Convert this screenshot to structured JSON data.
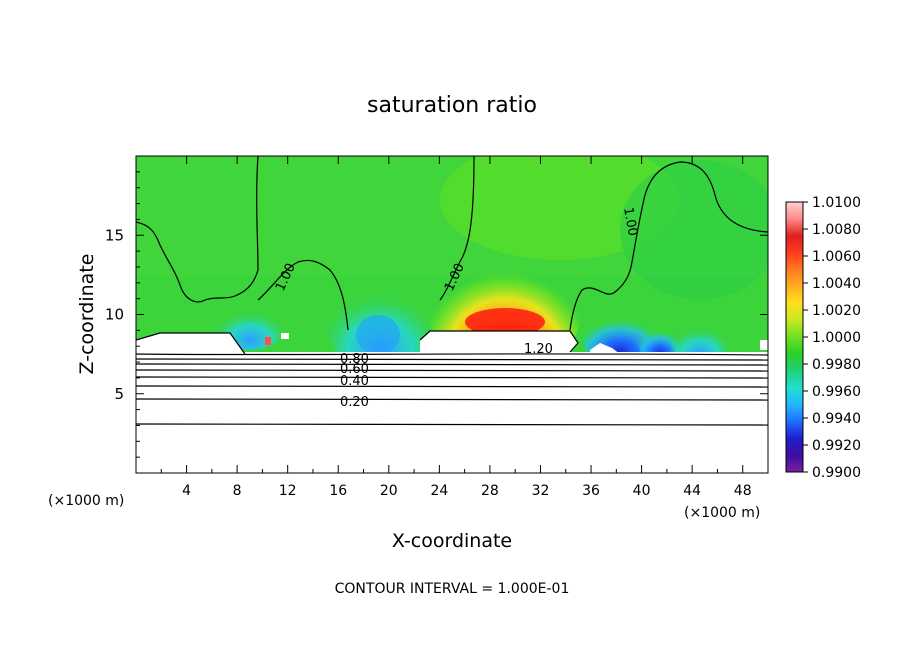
{
  "chart_data": {
    "type": "heatmap",
    "title": "saturation ratio",
    "xlabel": "X-coordinate",
    "ylabel": "Z-coordinate",
    "x_unit_left": "(×1000 m)",
    "x_unit_right": "(×1000 m)",
    "footer": "CONTOUR INTERVAL = 1.000E-01",
    "xlim": [
      0,
      50
    ],
    "ylim": [
      0,
      20
    ],
    "x_ticks": [
      4,
      8,
      12,
      16,
      20,
      24,
      28,
      32,
      36,
      40,
      44,
      48
    ],
    "y_ticks": [
      5,
      10,
      15
    ],
    "colorbar": {
      "range": [
        0.99,
        1.01
      ],
      "labels": [
        "1.0100",
        "1.0080",
        "1.0060",
        "1.0040",
        "1.0020",
        "1.0000",
        "0.9980",
        "0.9960",
        "0.9940",
        "0.9920",
        "0.9900"
      ],
      "colors": [
        "#7a1fa2",
        "#3b0f9e",
        "#1f1fd0",
        "#1f6fff",
        "#22b8ff",
        "#1fe0c8",
        "#1fd07a",
        "#2ad02a",
        "#6fe01f",
        "#c8e81f",
        "#ffe01f",
        "#ffb01f",
        "#ff7a1f",
        "#ff3a1f",
        "#e01f1f",
        "#ff8a8a",
        "#ffd0d0"
      ]
    },
    "contour_labels": [
      "1.00",
      "1.00",
      "1.00",
      "1.20",
      "0.80",
      "0.60",
      "0.40",
      "0.20"
    ],
    "colors": {
      "background_field": "#3bd43b",
      "warm_peak": "#ff2a14",
      "cool_trough": "#1f2fd0",
      "contour": "#000000"
    }
  }
}
